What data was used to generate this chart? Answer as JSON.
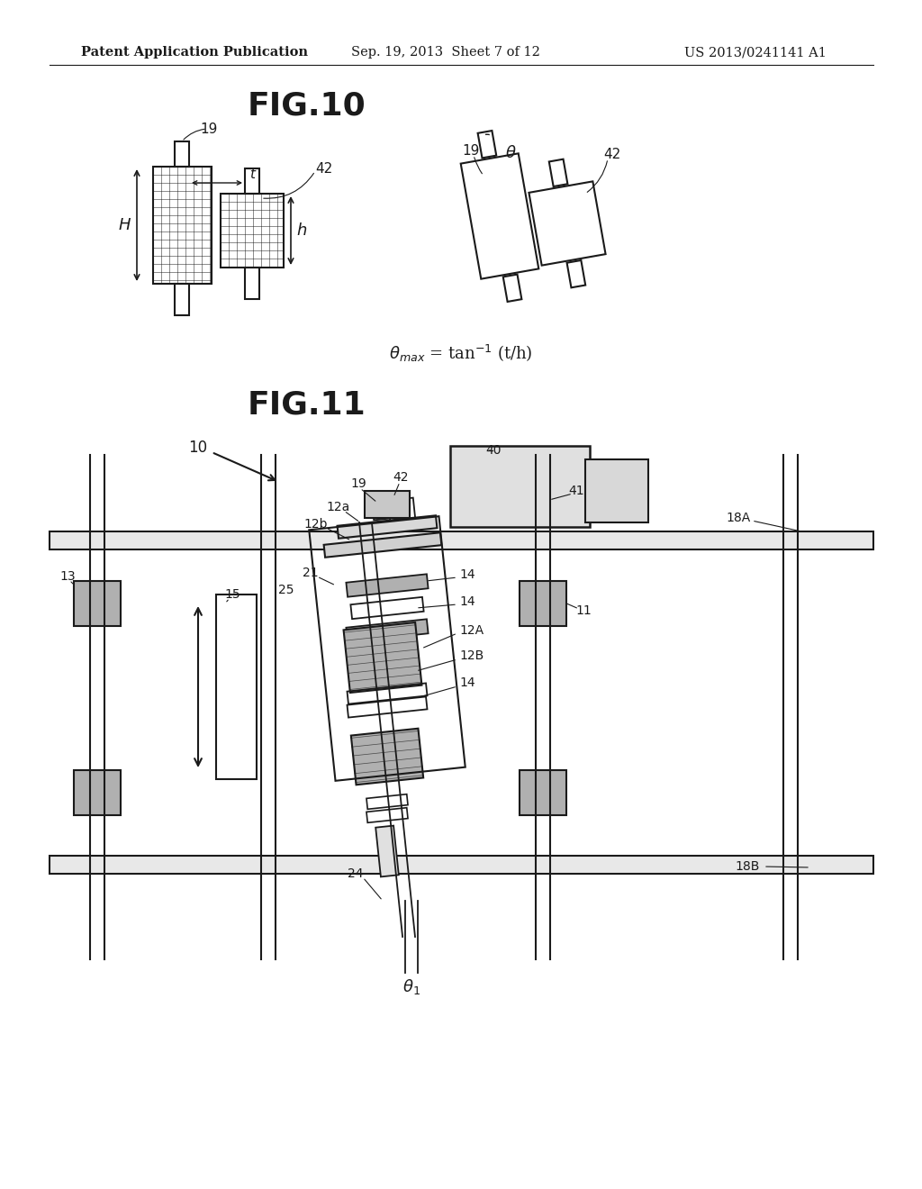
{
  "header_left": "Patent Application Publication",
  "header_center": "Sep. 19, 2013  Sheet 7 of 12",
  "header_right": "US 2013/0241141 A1",
  "bg_color": "#ffffff",
  "line_color": "#1a1a1a",
  "gray_fill": "#b0b0b0"
}
